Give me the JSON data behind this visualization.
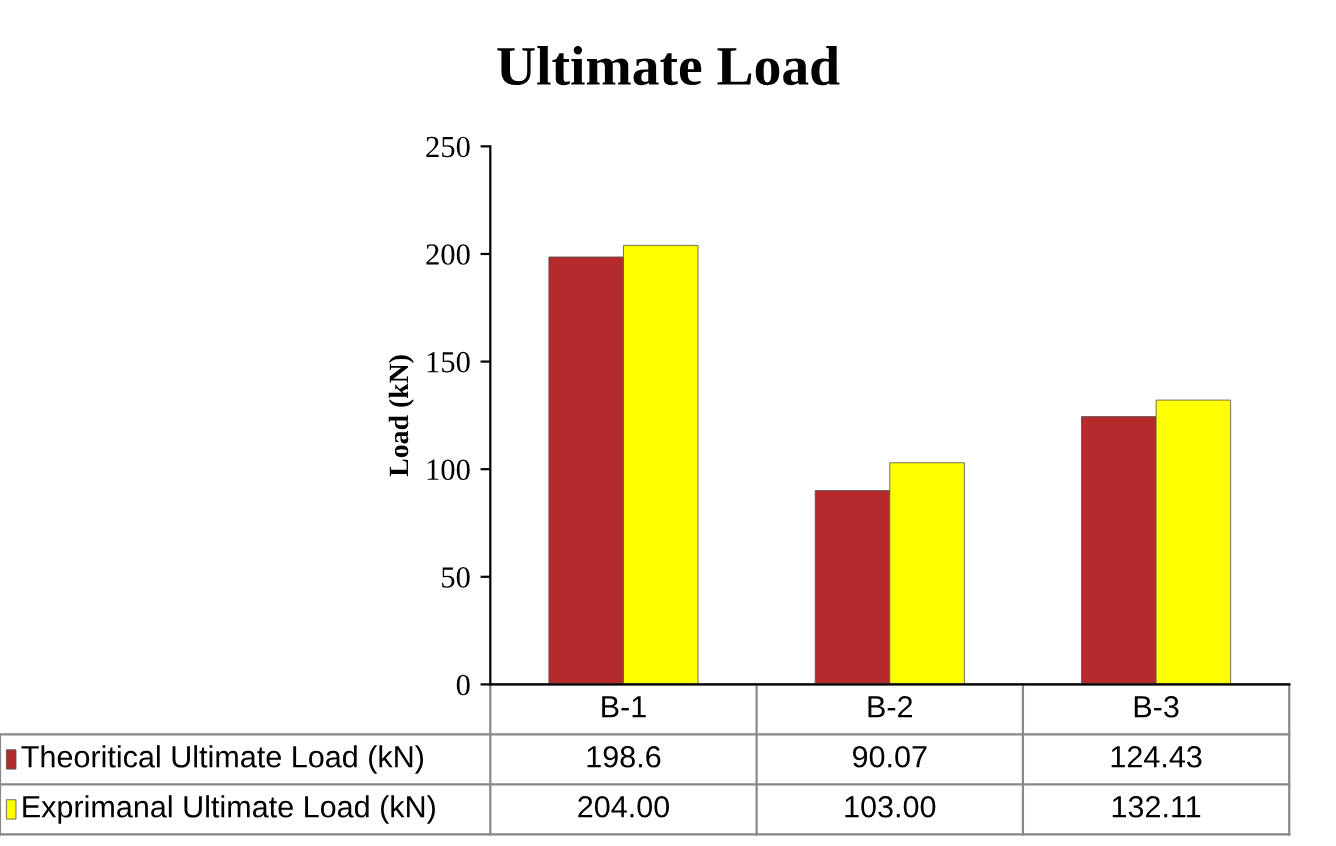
{
  "chart_data": {
    "type": "bar",
    "title": "Ultimate Load",
    "ylabel": "Load (kN)",
    "categories": [
      "B-1",
      "B-2",
      "B-3"
    ],
    "series": [
      {
        "name": "Theoritical Ultimate Load (kN)",
        "color": "#b52a2a",
        "values": [
          198.6,
          90.07,
          124.43
        ],
        "value_labels": [
          "198.6",
          "90.07",
          "124.43"
        ]
      },
      {
        "name": "Exprimanal Ultimate Load (kN)",
        "color": "#ffff00",
        "values": [
          204.0,
          103.0,
          132.11
        ],
        "value_labels": [
          "204.00",
          "103.00",
          "132.11"
        ]
      }
    ],
    "ylim": [
      0,
      250
    ],
    "yticks": [
      0,
      50,
      100,
      150,
      200,
      250
    ],
    "grid": false,
    "legend": "bottom left"
  }
}
